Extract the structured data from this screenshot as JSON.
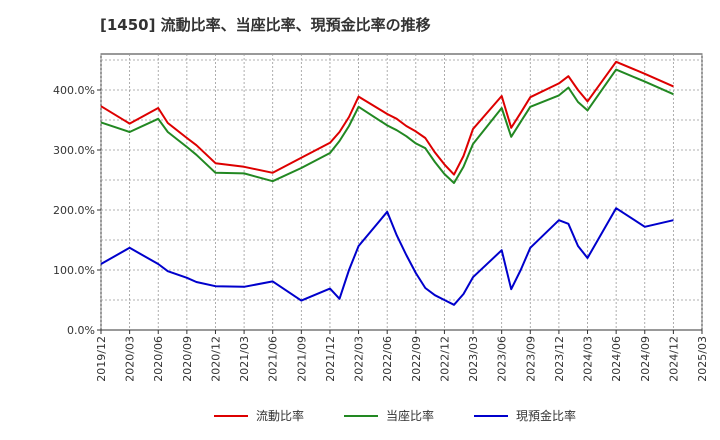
{
  "chart_data": {
    "type": "line",
    "title": "[1450]  流動比率、当座比率、現預金比率の推移",
    "xlabel": "",
    "ylabel": "",
    "ylim": [
      0,
      460
    ],
    "grid": true,
    "legend_position": "bottom",
    "x_ticks": [
      "2019/12",
      "2020/03",
      "2020/06",
      "2020/09",
      "2020/12",
      "2021/03",
      "2021/06",
      "2021/09",
      "2021/12",
      "2022/03",
      "2022/06",
      "2022/09",
      "2022/12",
      "2023/03",
      "2023/06",
      "2023/09",
      "2023/12",
      "2024/03",
      "2024/06",
      "2024/09",
      "2024/12",
      "2025/03"
    ],
    "y_ticks": [
      0,
      100,
      200,
      300,
      400
    ],
    "y_tick_labels": [
      "0.0%",
      "100.0%",
      "200.0%",
      "300.0%",
      "400.0%"
    ],
    "x": [
      "2019/12",
      "2020/03",
      "2020/06",
      "2020/07",
      "2020/09",
      "2020/10",
      "2020/12",
      "2021/03",
      "2021/06",
      "2021/09",
      "2021/12",
      "2022/01",
      "2022/02",
      "2022/03",
      "2022/06",
      "2022/07",
      "2022/08",
      "2022/09",
      "2022/10",
      "2022/11",
      "2022/12",
      "2023/01",
      "2023/02",
      "2023/03",
      "2023/06",
      "2023/07",
      "2023/08",
      "2023/09",
      "2023/12",
      "2024/01",
      "2024/02",
      "2024/03",
      "2024/06",
      "2024/09",
      "2024/12"
    ],
    "series": [
      {
        "name": "流動比率",
        "color": "#dd0000",
        "values": [
          373,
          344,
          370,
          345,
          320,
          308,
          278,
          272,
          262,
          287,
          312,
          330,
          355,
          389,
          360,
          352,
          340,
          331,
          320,
          296,
          276,
          259,
          290,
          335,
          390,
          337,
          362,
          388,
          411,
          423,
          400,
          381,
          447,
          427,
          406
        ]
      },
      {
        "name": "当座比率",
        "color": "#228822",
        "values": [
          346,
          330,
          352,
          330,
          305,
          292,
          262,
          261,
          248,
          270,
          295,
          315,
          340,
          372,
          341,
          333,
          323,
          311,
          303,
          280,
          260,
          245,
          272,
          310,
          370,
          322,
          347,
          372,
          391,
          404,
          380,
          366,
          434,
          414,
          393
        ]
      },
      {
        "name": "現預金比率",
        "color": "#0000cc",
        "values": [
          110,
          137,
          110,
          98,
          87,
          80,
          73,
          72,
          81,
          49,
          69,
          52,
          100,
          140,
          197,
          158,
          125,
          95,
          70,
          58,
          50,
          42,
          60,
          88,
          133,
          68,
          100,
          137,
          183,
          177,
          140,
          120,
          203,
          172,
          183
        ]
      }
    ]
  }
}
